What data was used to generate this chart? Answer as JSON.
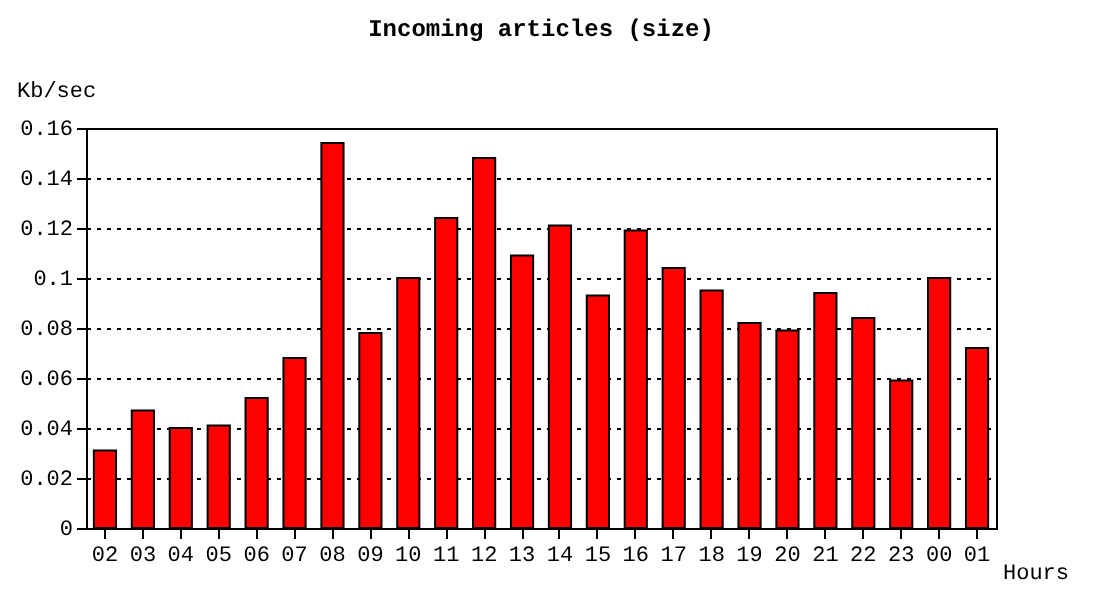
{
  "chart_data": {
    "type": "bar",
    "title": "Incoming articles (size)",
    "ylabel": "Kb/sec",
    "xlabel": "Hours",
    "categories": [
      "02",
      "03",
      "04",
      "05",
      "06",
      "07",
      "08",
      "09",
      "10",
      "11",
      "12",
      "13",
      "14",
      "15",
      "16",
      "17",
      "18",
      "19",
      "20",
      "21",
      "22",
      "23",
      "00",
      "01"
    ],
    "values": [
      0.031,
      0.047,
      0.04,
      0.041,
      0.052,
      0.068,
      0.154,
      0.078,
      0.1,
      0.124,
      0.148,
      0.109,
      0.121,
      0.093,
      0.119,
      0.104,
      0.095,
      0.082,
      0.079,
      0.094,
      0.084,
      0.059,
      0.1,
      0.072
    ],
    "color": "#ff0000",
    "ylim": [
      0,
      0.16
    ],
    "yticks": [
      0,
      0.02,
      0.04,
      0.06,
      0.08,
      0.1,
      0.12,
      0.14,
      0.16
    ],
    "grid": "y",
    "line_style": "dotted"
  }
}
